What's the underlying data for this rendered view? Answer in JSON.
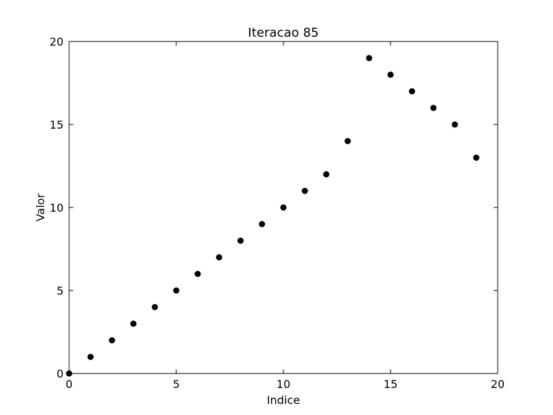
{
  "chart_data": {
    "type": "scatter",
    "title": "Iteracao 85",
    "xlabel": "Indice",
    "ylabel": "Valor",
    "xlim": [
      0,
      20
    ],
    "ylim": [
      0,
      20
    ],
    "xticks": [
      0,
      5,
      10,
      15,
      20
    ],
    "yticks": [
      0,
      5,
      10,
      15,
      20
    ],
    "xtick_labels": [
      "0",
      "5",
      "10",
      "15",
      "20"
    ],
    "ytick_labels": [
      "0",
      "5",
      "10",
      "15",
      "20"
    ],
    "grid": false,
    "legend": "none",
    "marker_color": "#000000",
    "series": [
      {
        "x": [
          0,
          1,
          2,
          3,
          4,
          5,
          6,
          7,
          8,
          9,
          10,
          11,
          12,
          13,
          14,
          15,
          16,
          17,
          18,
          19
        ],
        "y": [
          0,
          1,
          2,
          3,
          4,
          5,
          6,
          7,
          8,
          9,
          10,
          11,
          12,
          14,
          19,
          18,
          17,
          16,
          15,
          13
        ]
      }
    ]
  }
}
